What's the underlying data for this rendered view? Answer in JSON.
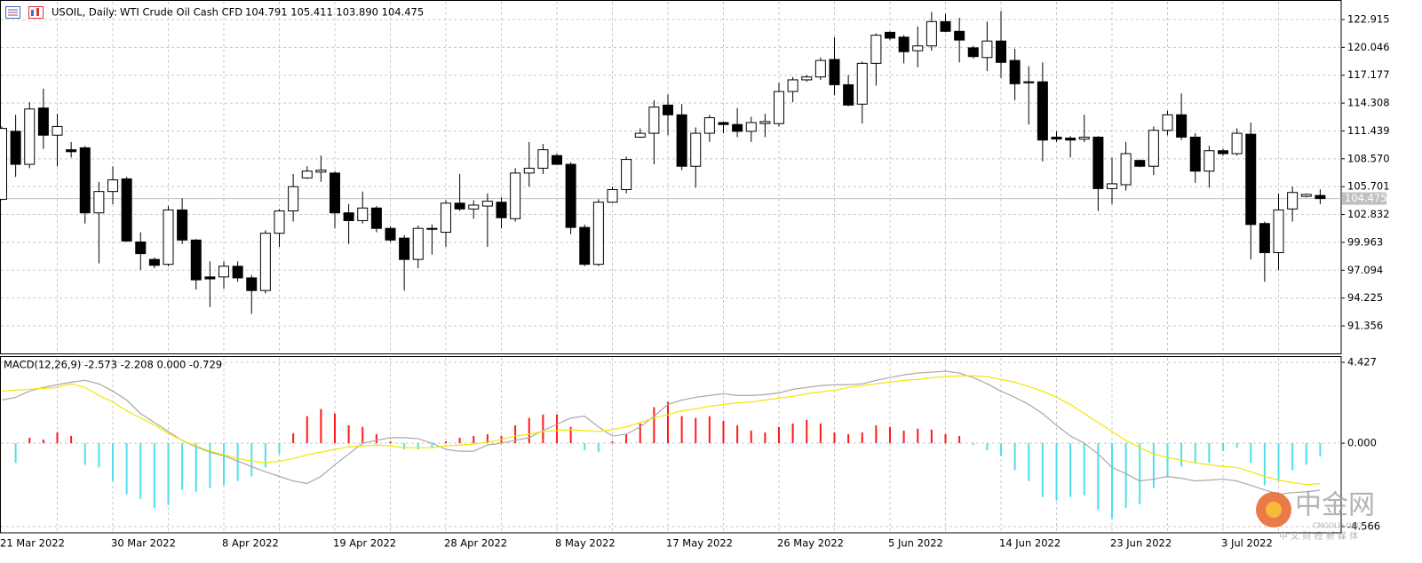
{
  "chart_data": [
    {
      "type": "candlestick",
      "title": "USOIL, Daily:",
      "subtitle": "WTI Crude Oil Cash CFD",
      "quote": "104.791 105.411 103.890 104.475",
      "categories": [
        "21 Mar 2022",
        null,
        null,
        null,
        null,
        null,
        null,
        null,
        "30 Mar 2022",
        null,
        null,
        null,
        null,
        null,
        null,
        null,
        "8 Apr 2022",
        null,
        null,
        null,
        null,
        null,
        null,
        null,
        "19 Apr 2022",
        null,
        null,
        null,
        null,
        null,
        null,
        null,
        "28 Apr 2022",
        null,
        null,
        null,
        null,
        null,
        null,
        null,
        "8 May 2022",
        null,
        null,
        null,
        null,
        null,
        null,
        null,
        "17 May 2022",
        null,
        null,
        null,
        null,
        null,
        null,
        null,
        "26 May 2022",
        null,
        null,
        null,
        null,
        null,
        null,
        null,
        "5 Jun 2022",
        null,
        null,
        null,
        null,
        null,
        null,
        null,
        "14 Jun 2022",
        null,
        null,
        null,
        null,
        null,
        null,
        null,
        "23 Jun 2022",
        null,
        null,
        null,
        null,
        null,
        null,
        null,
        "3 Jul 2022",
        null,
        null,
        null,
        null,
        null,
        null,
        null
      ],
      "open": [
        104.4,
        111.4,
        108.0,
        113.8,
        111.0,
        109.5,
        109.7,
        103.0,
        105.2,
        106.5,
        100.0,
        98.2,
        97.7,
        103.3,
        100.2,
        96.4,
        96.4,
        97.5,
        96.3,
        95.0,
        100.9,
        103.2,
        106.6,
        107.2,
        107.1,
        103.0,
        102.2,
        103.5,
        101.4,
        100.4,
        98.2,
        101.4,
        101.0,
        104.0,
        103.4,
        103.7,
        104.1,
        102.4,
        107.1,
        107.6,
        108.9,
        108.0,
        101.5,
        97.7,
        104.1,
        105.4,
        110.8,
        111.2,
        114.1,
        113.1,
        107.8,
        111.2,
        112.3,
        112.1,
        111.4,
        112.2,
        112.2,
        115.5,
        116.7,
        117.0,
        118.8,
        116.2,
        114.2,
        118.4,
        121.6,
        121.1,
        119.7,
        120.2,
        122.7,
        121.7,
        120.0,
        119.0,
        120.7,
        118.7,
        116.5,
        116.5,
        110.8,
        110.7,
        110.6,
        110.8,
        105.5,
        105.9,
        108.4,
        107.8,
        111.5,
        113.1,
        110.8,
        107.3,
        109.4,
        109.1,
        111.1,
        101.9,
        98.9,
        103.4,
        104.7,
        104.791
      ],
      "high": [
        111.9,
        113.1,
        114.4,
        115.8,
        113.2,
        110.3,
        109.9,
        106.2,
        107.8,
        106.7,
        101.0,
        98.4,
        103.7,
        104.5,
        100.3,
        98.0,
        98.0,
        98.0,
        96.6,
        101.2,
        103.4,
        107.0,
        107.8,
        108.9,
        107.3,
        103.9,
        105.2,
        103.7,
        101.6,
        100.7,
        101.7,
        101.8,
        104.3,
        107.0,
        104.3,
        105.0,
        104.6,
        107.6,
        110.3,
        110.1,
        109.1,
        108.2,
        101.8,
        104.4,
        105.7,
        108.8,
        111.7,
        114.6,
        115.2,
        114.2,
        111.8,
        113.1,
        112.4,
        113.8,
        112.9,
        113.2,
        116.4,
        117.0,
        117.2,
        119.0,
        121.1,
        117.2,
        118.6,
        121.5,
        121.7,
        121.3,
        122.2,
        123.7,
        123.5,
        123.1,
        120.2,
        122.7,
        123.8,
        119.9,
        118.1,
        118.5,
        111.4,
        110.9,
        113.1,
        110.9,
        108.7,
        110.3,
        108.5,
        111.9,
        113.5,
        115.3,
        111.2,
        109.9,
        109.6,
        111.7,
        112.3,
        102.1,
        105.0,
        105.7,
        105.0,
        105.411
      ],
      "low": [
        104.3,
        106.7,
        107.6,
        109.6,
        107.8,
        108.7,
        101.9,
        97.8,
        103.9,
        100.0,
        97.1,
        97.3,
        97.5,
        99.8,
        95.1,
        93.3,
        95.2,
        95.9,
        92.6,
        94.7,
        99.5,
        102.1,
        106.5,
        106.2,
        101.4,
        99.8,
        101.9,
        101.0,
        100.0,
        95.0,
        97.3,
        98.7,
        99.5,
        103.2,
        102.4,
        99.5,
        101.4,
        102.1,
        105.7,
        107.0,
        107.9,
        100.8,
        97.5,
        97.5,
        104.0,
        105.0,
        110.7,
        108.0,
        111.0,
        107.4,
        105.6,
        110.3,
        111.2,
        110.8,
        110.3,
        110.8,
        111.9,
        114.4,
        116.5,
        116.7,
        115.1,
        114.0,
        112.2,
        116.1,
        120.8,
        118.4,
        118.0,
        119.7,
        121.6,
        118.5,
        118.9,
        117.6,
        116.9,
        114.6,
        112.1,
        108.3,
        110.3,
        108.7,
        110.3,
        103.2,
        103.9,
        105.3,
        107.7,
        106.9,
        111.0,
        110.5,
        106.1,
        105.6,
        108.9,
        108.9,
        98.2,
        95.9,
        97.1,
        102.1,
        104.6,
        103.89
      ],
      "close": [
        111.7,
        108.0,
        113.7,
        111.0,
        111.9,
        109.3,
        103.0,
        105.2,
        106.4,
        100.1,
        98.8,
        97.6,
        103.3,
        100.2,
        96.1,
        96.2,
        97.5,
        96.3,
        95.0,
        100.9,
        103.2,
        105.7,
        107.3,
        107.4,
        103.0,
        102.2,
        103.5,
        101.4,
        100.2,
        98.2,
        101.4,
        101.3,
        104.0,
        103.4,
        103.8,
        104.2,
        102.5,
        107.1,
        107.6,
        109.5,
        108.0,
        101.5,
        97.7,
        104.1,
        105.4,
        108.5,
        111.2,
        113.9,
        113.1,
        107.8,
        111.2,
        112.8,
        112.1,
        111.4,
        112.3,
        112.4,
        115.5,
        116.7,
        117.0,
        118.7,
        116.2,
        114.1,
        118.4,
        121.3,
        121.0,
        119.6,
        120.2,
        122.7,
        121.7,
        120.8,
        119.1,
        120.7,
        118.5,
        116.3,
        116.4,
        110.5,
        110.6,
        110.5,
        110.8,
        105.5,
        106.0,
        109.1,
        107.8,
        111.5,
        113.1,
        110.8,
        107.3,
        109.4,
        109.1,
        111.2,
        101.8,
        98.9,
        103.3,
        105.1,
        104.9,
        104.475
      ],
      "up_color": "#ffffff",
      "down_color": "#000000",
      "wick_color": "#000000",
      "last_price": 104.475,
      "last_price_color": "#c0c0c0",
      "ylim": [
        88.52,
        124.744
      ],
      "yticks": [
        122.915,
        120.046,
        117.177,
        114.308,
        111.439,
        {
          "value": 108.57,
          "label": "108.570"
        },
        105.701,
        102.832,
        99.963,
        97.094,
        94.225,
        91.356
      ],
      "grid": true
    },
    {
      "type": "macd",
      "title": "MACD(12,26,9) -2.573 -2.208 0.000 -0.729",
      "histogram": {
        "positive_color": "#ff1a1a",
        "negative_color": "#4fe0ea",
        "values": [
          null,
          -1.08,
          0.3,
          0.2,
          0.6,
          0.4,
          -1.18,
          -1.33,
          -2.07,
          -2.8,
          -3.05,
          -3.54,
          -3.39,
          -2.56,
          -2.66,
          -2.46,
          -2.31,
          -2.07,
          -1.82,
          -1.33,
          -0.59,
          0.54,
          1.48,
          1.87,
          1.62,
          0.98,
          0.89,
          0.49,
          0.1,
          -0.34,
          -0.34,
          -0.25,
          0.1,
          0.3,
          0.39,
          0.49,
          0.39,
          0.98,
          1.38,
          1.57,
          1.57,
          0.89,
          -0.39,
          -0.49,
          0.1,
          0.49,
          1.08,
          1.97,
          2.26,
          1.48,
          1.38,
          1.48,
          1.23,
          0.98,
          0.69,
          0.59,
          0.89,
          1.08,
          1.28,
          1.08,
          0.59,
          0.49,
          0.59,
          0.98,
          0.89,
          0.69,
          0.79,
          0.74,
          0.49,
          0.39,
          -0.1,
          -0.39,
          -0.69,
          -1.48,
          -2.07,
          -2.95,
          -3.15,
          -2.95,
          -2.85,
          -3.64,
          -4.13,
          -3.54,
          -3.34,
          -2.46,
          -1.87,
          -1.28,
          -1.08,
          -1.08,
          -0.44,
          -0.25,
          -1.08,
          -2.31,
          -2.07,
          -1.48,
          -1.18,
          -0.729
        ]
      },
      "lines": [
        {
          "color": "#a8a8a8",
          "values": [
            2.36,
            2.51,
            2.85,
            3.05,
            3.2,
            3.34,
            3.44,
            3.25,
            2.85,
            2.36,
            1.62,
            1.13,
            0.64,
            0.15,
            -0.2,
            -0.49,
            -0.69,
            -0.98,
            -1.28,
            -1.57,
            -1.82,
            -2.07,
            -2.21,
            -1.82,
            -1.18,
            -0.59,
            0,
            0.15,
            0.3,
            0.3,
            0.25,
            0,
            -0.34,
            -0.44,
            -0.44,
            -0.1,
            0,
            0.15,
            0.3,
            0.69,
            1.03,
            1.38,
            1.48,
            0.89,
            0.39,
            0.49,
            0.89,
            1.48,
            2.12,
            2.36,
            2.51,
            2.61,
            2.71,
            2.61,
            2.61,
            2.66,
            2.75,
            2.95,
            3.05,
            3.15,
            3.2,
            3.2,
            3.25,
            3.44,
            3.59,
            3.74,
            3.84,
            3.89,
            3.94,
            3.84,
            3.59,
            3.25,
            2.85,
            2.51,
            2.12,
            1.62,
            0.98,
            0.39,
            0,
            -0.59,
            -1.33,
            -1.67,
            -2.07,
            -1.97,
            -1.82,
            -1.92,
            -2.07,
            -2.02,
            -1.97,
            -2.07,
            -2.31,
            -2.56,
            -2.8,
            -2.71,
            -2.66,
            -2.573
          ]
        },
        {
          "color": "#f2e600",
          "values": [
            2.85,
            2.9,
            2.95,
            3.0,
            3.05,
            3.25,
            3.05,
            2.61,
            2.26,
            1.77,
            1.38,
            0.98,
            0.54,
            0.15,
            -0.15,
            -0.44,
            -0.64,
            -0.84,
            -0.98,
            -1.08,
            -0.98,
            -0.84,
            -0.64,
            -0.49,
            -0.34,
            -0.2,
            -0.15,
            -0.1,
            -0.15,
            -0.25,
            -0.25,
            -0.25,
            -0.15,
            -0.1,
            -0.05,
            0.05,
            0.2,
            0.39,
            0.49,
            0.64,
            0.69,
            0.74,
            0.69,
            0.64,
            0.74,
            0.89,
            1.13,
            1.38,
            1.57,
            1.77,
            1.87,
            2.02,
            2.12,
            2.21,
            2.26,
            2.36,
            2.46,
            2.56,
            2.71,
            2.8,
            2.9,
            3.05,
            3.15,
            3.25,
            3.34,
            3.44,
            3.49,
            3.59,
            3.64,
            3.69,
            3.69,
            3.64,
            3.49,
            3.34,
            3.1,
            2.85,
            2.51,
            2.12,
            1.62,
            1.13,
            0.64,
            0.15,
            -0.25,
            -0.59,
            -0.79,
            -0.93,
            -1.08,
            -1.18,
            -1.28,
            -1.33,
            -1.57,
            -1.82,
            -2.02,
            -2.16,
            -2.26,
            -2.208
          ]
        }
      ],
      "ylim": [
        -4.81,
        4.67
      ],
      "yticks": [
        4.427,
        {
          "value": 0,
          "label": "0.000"
        },
        -4.566
      ],
      "grid": true
    }
  ],
  "watermark": {
    "logo": "中金网",
    "site": "CNGOLD.ORG",
    "tagline": "中 文 财 经 新 媒 体"
  }
}
